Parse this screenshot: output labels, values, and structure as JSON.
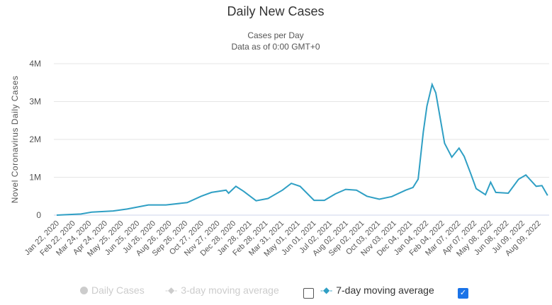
{
  "chart_data": {
    "type": "line",
    "title": "Daily New Cases",
    "subtitle_lines": [
      "Cases per Day",
      "Data as of 0:00 GMT+0"
    ],
    "ylabel": "Novel Coronavirus Daily Cases",
    "xlabel": "",
    "ylim": [
      0,
      4000000
    ],
    "xlim_days": [
      0,
      951
    ],
    "grid": true,
    "y_ticks": [
      {
        "v": 0,
        "label": "0"
      },
      {
        "v": 1000000,
        "label": "1M"
      },
      {
        "v": 2000000,
        "label": "2M"
      },
      {
        "v": 3000000,
        "label": "3M"
      },
      {
        "v": 4000000,
        "label": "4M"
      }
    ],
    "x_ticks": [
      {
        "d": 0,
        "label": "Jan 22, 2020"
      },
      {
        "d": 31,
        "label": "Feb 22, 2020"
      },
      {
        "d": 62,
        "label": "Mar 24, 2020"
      },
      {
        "d": 93,
        "label": "Apr 24, 2020"
      },
      {
        "d": 124,
        "label": "May 25, 2020"
      },
      {
        "d": 155,
        "label": "Jun 25, 2020"
      },
      {
        "d": 186,
        "label": "Jul 26, 2020"
      },
      {
        "d": 217,
        "label": "Aug 26, 2020"
      },
      {
        "d": 248,
        "label": "Sep 26, 2020"
      },
      {
        "d": 279,
        "label": "Oct 27, 2020"
      },
      {
        "d": 310,
        "label": "Nov 27, 2020"
      },
      {
        "d": 341,
        "label": "Dec 28, 2020"
      },
      {
        "d": 372,
        "label": "Jan 28, 2021"
      },
      {
        "d": 403,
        "label": "Feb 28, 2021"
      },
      {
        "d": 434,
        "label": "Mar 31, 2021"
      },
      {
        "d": 465,
        "label": "May 01, 2021"
      },
      {
        "d": 496,
        "label": "Jun 01, 2021"
      },
      {
        "d": 527,
        "label": "Jul 02, 2021"
      },
      {
        "d": 558,
        "label": "Aug 02, 2021"
      },
      {
        "d": 589,
        "label": "Sep 02, 2021"
      },
      {
        "d": 620,
        "label": "Oct 03, 2021"
      },
      {
        "d": 651,
        "label": "Nov 03, 2021"
      },
      {
        "d": 682,
        "label": "Dec 04, 2021"
      },
      {
        "d": 713,
        "label": "Jan 04, 2022"
      },
      {
        "d": 744,
        "label": "Feb 04, 2022"
      },
      {
        "d": 775,
        "label": "Mar 07, 2022"
      },
      {
        "d": 806,
        "label": "Apr 07, 2022"
      },
      {
        "d": 837,
        "label": "May 08, 2022"
      },
      {
        "d": 868,
        "label": "Jun 08, 2022"
      },
      {
        "d": 899,
        "label": "Jul 09, 2022"
      },
      {
        "d": 930,
        "label": "Aug 09, 2022"
      }
    ],
    "series": [
      {
        "name": "7-day moving average",
        "color": "#2f9fc4",
        "visible": true,
        "points": [
          [
            0,
            0
          ],
          [
            47,
            30000
          ],
          [
            68,
            80000
          ],
          [
            109,
            110000
          ],
          [
            136,
            160000
          ],
          [
            177,
            270000
          ],
          [
            211,
            270000
          ],
          [
            252,
            330000
          ],
          [
            279,
            500000
          ],
          [
            299,
            600000
          ],
          [
            327,
            660000
          ],
          [
            332,
            580000
          ],
          [
            346,
            760000
          ],
          [
            361,
            630000
          ],
          [
            385,
            380000
          ],
          [
            408,
            440000
          ],
          [
            436,
            660000
          ],
          [
            453,
            840000
          ],
          [
            470,
            760000
          ],
          [
            497,
            390000
          ],
          [
            517,
            390000
          ],
          [
            538,
            560000
          ],
          [
            558,
            680000
          ],
          [
            579,
            660000
          ],
          [
            599,
            500000
          ],
          [
            623,
            420000
          ],
          [
            647,
            490000
          ],
          [
            674,
            660000
          ],
          [
            688,
            730000
          ],
          [
            698,
            950000
          ],
          [
            708,
            2200000
          ],
          [
            715,
            2880000
          ],
          [
            725,
            3450000
          ],
          [
            732,
            3230000
          ],
          [
            749,
            1900000
          ],
          [
            763,
            1530000
          ],
          [
            777,
            1770000
          ],
          [
            787,
            1550000
          ],
          [
            800,
            1080000
          ],
          [
            810,
            700000
          ],
          [
            828,
            540000
          ],
          [
            838,
            870000
          ],
          [
            848,
            600000
          ],
          [
            872,
            580000
          ],
          [
            892,
            950000
          ],
          [
            906,
            1060000
          ],
          [
            926,
            760000
          ],
          [
            937,
            780000
          ],
          [
            948,
            520000
          ]
        ]
      }
    ],
    "legend": {
      "placement": "bottom",
      "items": [
        {
          "label": "Daily Cases",
          "active": false,
          "checkbox": null
        },
        {
          "label": "3-day moving average",
          "active": false,
          "checkbox": false
        },
        {
          "label": "7-day moving average",
          "active": true,
          "checkbox": true
        }
      ]
    }
  },
  "colors": {
    "line": "#2f9fc4",
    "grid": "#e6e6e6",
    "inactive": "#cccccc",
    "checkbox": "#1a73e8"
  }
}
